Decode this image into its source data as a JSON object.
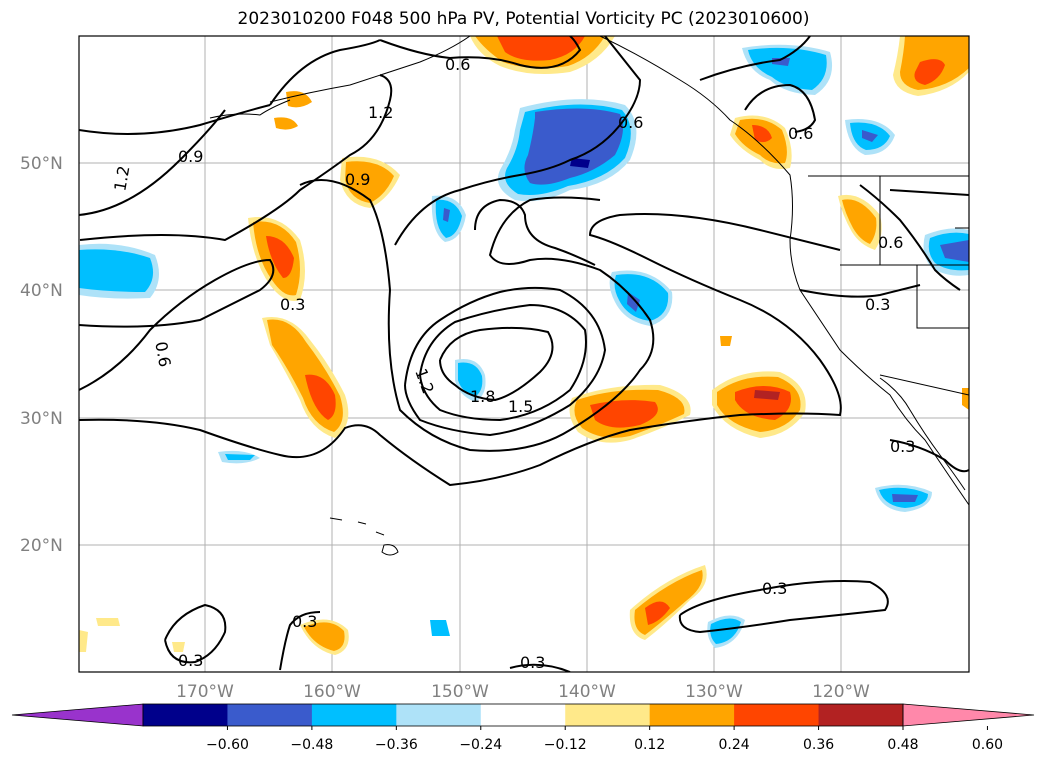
{
  "title": "2023010200 F048 500 hPa PV, Potential Vorticity PC (2023010600)",
  "latitude_labels": [
    "50°N",
    "40°N",
    "30°N",
    "20°N"
  ],
  "longitude_labels": [
    "170°W",
    "160°W",
    "150°W",
    "140°W",
    "130°W",
    "120°W"
  ],
  "colorbar": {
    "colors": [
      "#9933cc",
      "#00008b",
      "#3a5bcc",
      "#00bfff",
      "#aee2f8",
      "#ffffff",
      "#ffe98a",
      "#ffa500",
      "#ff4500",
      "#b22222",
      "#ff88aa"
    ],
    "tick_labels": [
      "−0.60",
      "−0.48",
      "−0.36",
      "−0.24",
      "−0.12",
      "0.12",
      "0.24",
      "0.36",
      "0.48",
      "0.60"
    ]
  },
  "contour_labels": [
    "0.6",
    "1.2",
    "0.9",
    "1.2",
    "0.9",
    "0.6",
    "0.6",
    "0.6",
    "0.3",
    "0.6",
    "0.3",
    "1.2",
    "1.8",
    "1.5",
    "0.3",
    "0.3",
    "0.3",
    "0.3",
    "0.3"
  ]
}
